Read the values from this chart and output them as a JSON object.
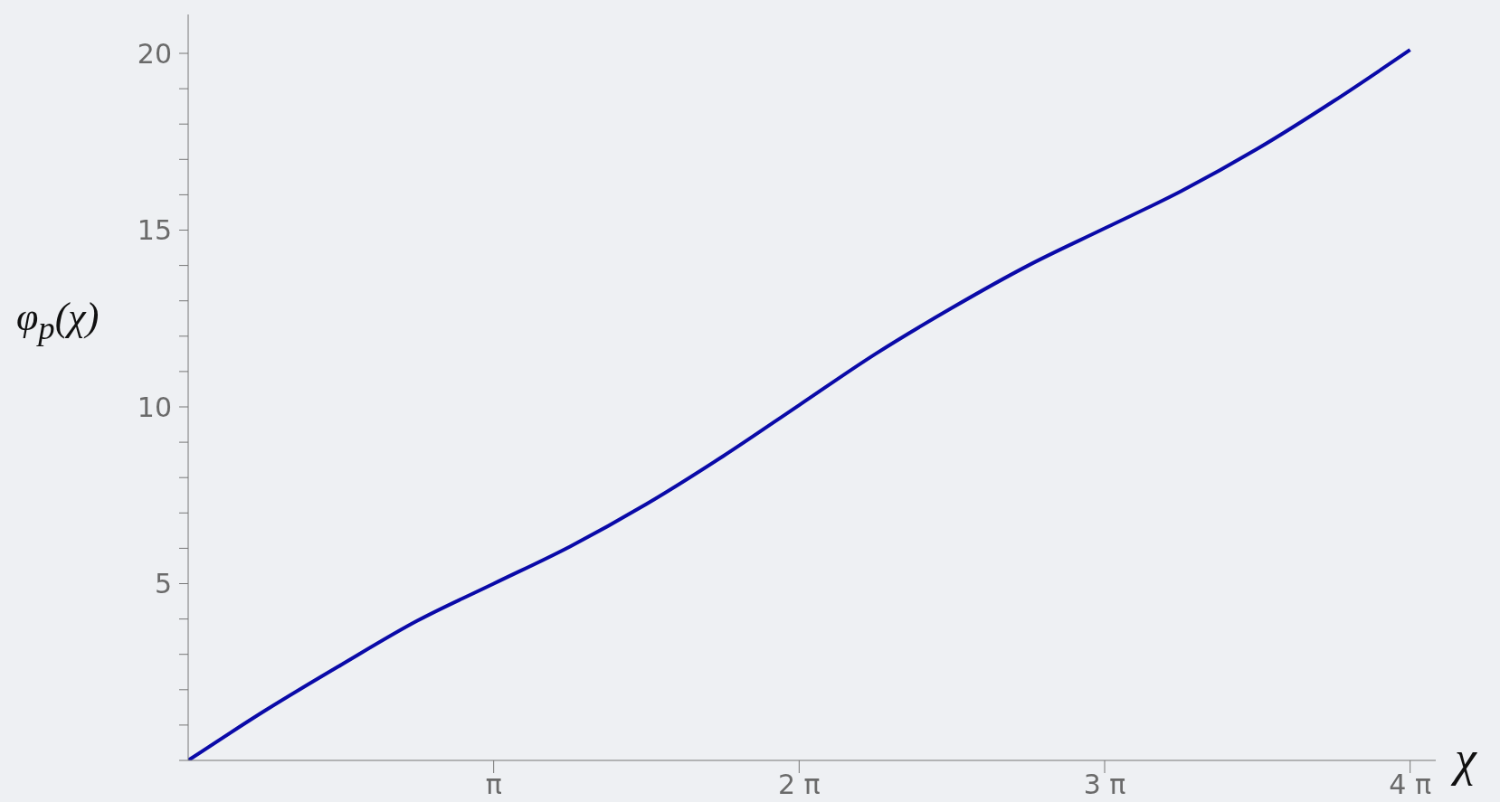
{
  "chart_data": {
    "type": "line",
    "xlabel": "χ",
    "ylabel": "φ$_{p}$(χ)",
    "x": [
      0,
      0.785,
      1.571,
      2.356,
      3.142,
      3.927,
      4.712,
      5.498,
      6.283,
      7.069,
      7.854,
      8.639,
      9.425,
      10.21,
      10.996,
      11.781,
      12.566
    ],
    "series": [
      {
        "color": "#0a0aa8",
        "values": [
          0,
          1.4,
          2.7,
          3.95,
          5.0,
          6.05,
          7.25,
          8.6,
          10.05,
          11.5,
          12.8,
          14.0,
          15.05,
          16.1,
          17.3,
          18.65,
          20.1
        ]
      }
    ],
    "xlim": [
      0,
      12.83
    ],
    "xticks": [
      {
        "value": 3.1416,
        "label": "π"
      },
      {
        "value": 6.2832,
        "label": "2 π"
      },
      {
        "value": 9.4248,
        "label": "3 π"
      },
      {
        "value": 12.5664,
        "label": "4 π"
      }
    ],
    "ylim": [
      0,
      21.1
    ],
    "yticks": [
      {
        "value": 0,
        "label": null
      },
      {
        "value": 1,
        "label": null
      },
      {
        "value": 2,
        "label": null
      },
      {
        "value": 3,
        "label": null
      },
      {
        "value": 4,
        "label": null
      },
      5,
      {
        "value": 6,
        "label": null
      },
      {
        "value": 7,
        "label": null
      },
      {
        "value": 8,
        "label": null
      },
      {
        "value": 9,
        "label": null
      },
      10,
      {
        "value": 11,
        "label": null
      },
      {
        "value": 12,
        "label": null
      },
      {
        "value": 13,
        "label": null
      },
      {
        "value": 14,
        "label": null
      },
      15,
      {
        "value": 16,
        "label": null
      },
      {
        "value": 17,
        "label": null
      },
      {
        "value": 18,
        "label": null
      },
      {
        "value": 19,
        "label": null
      },
      20
    ],
    "grid": false,
    "legend": false,
    "marker": "none",
    "line_style": "solid"
  }
}
